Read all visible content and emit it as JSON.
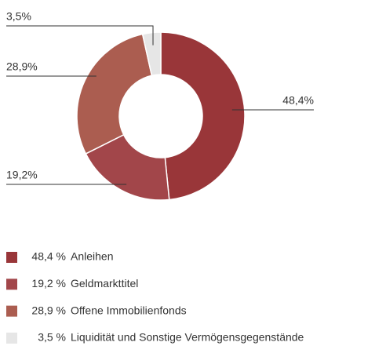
{
  "chart_data": {
    "type": "donut",
    "categories": [
      "Anleihen",
      "Geldmarkttitel",
      "Offene Immobilienfonds",
      "Liquidität und Sonstige Vermögensgegenstände"
    ],
    "values": [
      48.4,
      19.2,
      28.9,
      3.5
    ],
    "value_labels": [
      "48,4%",
      "19,2%",
      "28,9%",
      "3,5%"
    ],
    "legend_value_labels": [
      "48,4 %",
      "19,2 %",
      "28,9 %",
      "3,5 %"
    ],
    "colors": [
      "#993639",
      "#a2464a",
      "#ab5d50",
      "#e6e6e6"
    ]
  }
}
